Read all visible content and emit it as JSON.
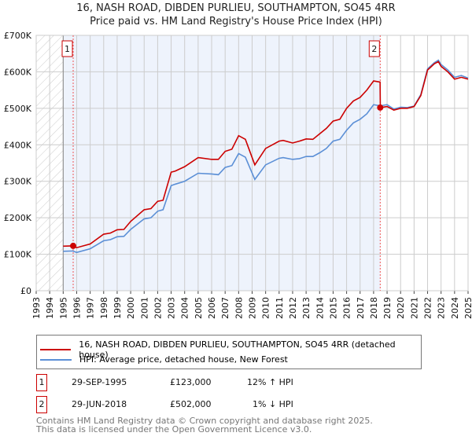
{
  "chart_data": {
    "type": "line",
    "title": "16, NASH ROAD, DIBDEN PURLIEU, SOUTHAMPTON, SO45 4RR",
    "subtitle": "Price paid vs. HM Land Registry's House Price Index (HPI)",
    "xlim": [
      1993,
      2025
    ],
    "ylim": [
      0,
      700000
    ],
    "x_ticks": [
      "1993",
      "1994",
      "1995",
      "1996",
      "1997",
      "1998",
      "1999",
      "2000",
      "2001",
      "2002",
      "2003",
      "2004",
      "2005",
      "2006",
      "2007",
      "2008",
      "2009",
      "2010",
      "2011",
      "2012",
      "2013",
      "2014",
      "2015",
      "2016",
      "2017",
      "2018",
      "2019",
      "2020",
      "2021",
      "2022",
      "2023",
      "2024",
      "2025"
    ],
    "y_ticks": [
      {
        "v": 0,
        "label": "£0"
      },
      {
        "v": 100000,
        "label": "£100K"
      },
      {
        "v": 200000,
        "label": "£200K"
      },
      {
        "v": 300000,
        "label": "£300K"
      },
      {
        "v": 400000,
        "label": "£400K"
      },
      {
        "v": 500000,
        "label": "£500K"
      },
      {
        "v": 600000,
        "label": "£600K"
      },
      {
        "v": 700000,
        "label": "£700K"
      }
    ],
    "grid": true,
    "series": [
      {
        "name": "16, NASH ROAD, DIBDEN PURLIEU, SOUTHAMPTON, SO45 4RR (detached house)",
        "color": "#cc0000",
        "x": [
          1995,
          1995.7,
          1996,
          1997,
          1998,
          1998.5,
          1999,
          1999.5,
          2000,
          2001,
          2001.5,
          2002,
          2002.4,
          2003,
          2003.3,
          2004,
          2005,
          2006,
          2006.5,
          2007,
          2007.5,
          2008,
          2008.5,
          2009.2,
          2010,
          2011,
          2011.3,
          2012,
          2012.5,
          2013,
          2013.5,
          2014,
          2014.5,
          2015,
          2015.5,
          2016,
          2016.5,
          2017,
          2017.5,
          2018,
          2018.48,
          2018.5,
          2019,
          2019.5,
          2020,
          2020.5,
          2021,
          2021.5,
          2022,
          2022.5,
          2022.8,
          2023,
          2023.5,
          2024,
          2024.5,
          2025
        ],
        "y": [
          122000,
          123000,
          118000,
          128000,
          155000,
          158000,
          167000,
          168000,
          190000,
          222000,
          225000,
          245000,
          248000,
          325000,
          328000,
          340000,
          365000,
          360000,
          360000,
          382000,
          388000,
          425000,
          415000,
          345000,
          390000,
          410000,
          412000,
          405000,
          410000,
          416000,
          415000,
          430000,
          445000,
          465000,
          470000,
          500000,
          520000,
          530000,
          550000,
          575000,
          572000,
          502000,
          505000,
          495000,
          500000,
          500000,
          505000,
          535000,
          605000,
          622000,
          628000,
          615000,
          600000,
          580000,
          585000,
          580000
        ]
      },
      {
        "name": "HPI: Average price, detached house, New Forest",
        "color": "#5b8fd6",
        "x": [
          1995,
          1995.7,
          1996,
          1997,
          1998,
          1998.5,
          1999,
          1999.5,
          2000,
          2001,
          2001.5,
          2002,
          2002.4,
          2003,
          2003.3,
          2004,
          2005,
          2006,
          2006.5,
          2007,
          2007.5,
          2008,
          2008.5,
          2009.2,
          2010,
          2011,
          2011.3,
          2012,
          2012.5,
          2013,
          2013.5,
          2014,
          2014.5,
          2015,
          2015.5,
          2016,
          2016.5,
          2017,
          2017.5,
          2018,
          2018.48,
          2018.5,
          2019,
          2019.5,
          2020,
          2020.5,
          2021,
          2021.5,
          2022,
          2022.5,
          2022.8,
          2023,
          2023.5,
          2024,
          2024.5,
          2025
        ],
        "y": [
          108000,
          109000,
          105000,
          115000,
          137000,
          140000,
          148000,
          149000,
          168000,
          197000,
          200000,
          218000,
          222000,
          288000,
          292000,
          300000,
          322000,
          320000,
          318000,
          338000,
          343000,
          376000,
          366000,
          305000,
          345000,
          363000,
          365000,
          360000,
          362000,
          368000,
          368000,
          378000,
          390000,
          410000,
          415000,
          440000,
          460000,
          470000,
          485000,
          510000,
          507000,
          507000,
          510000,
          498000,
          503000,
          502000,
          506000,
          538000,
          608000,
          625000,
          632000,
          620000,
          605000,
          585000,
          590000,
          583000
        ]
      }
    ],
    "shaded_range": [
      1995,
      2018.5
    ],
    "hatched_range": [
      1993,
      1995
    ],
    "markers": [
      {
        "id": "1",
        "x": 1995.74,
        "y": 123000
      },
      {
        "id": "2",
        "x": 2018.49,
        "y": 502000
      }
    ]
  },
  "legend": {
    "red": "16, NASH ROAD, DIBDEN PURLIEU, SOUTHAMPTON, SO45 4RR (detached house)",
    "blue": "HPI: Average price, detached house, New Forest"
  },
  "transactions": [
    {
      "id": "1",
      "date": "29-SEP-1995",
      "price": "£123,000",
      "hpi": "12% ↑ HPI"
    },
    {
      "id": "2",
      "date": "29-JUN-2018",
      "price": "£502,000",
      "hpi": "1% ↓ HPI"
    }
  ],
  "footer": {
    "line1": "Contains HM Land Registry data © Crown copyright and database right 2025.",
    "line2": "This data is licensed under the Open Government Licence v3.0."
  }
}
